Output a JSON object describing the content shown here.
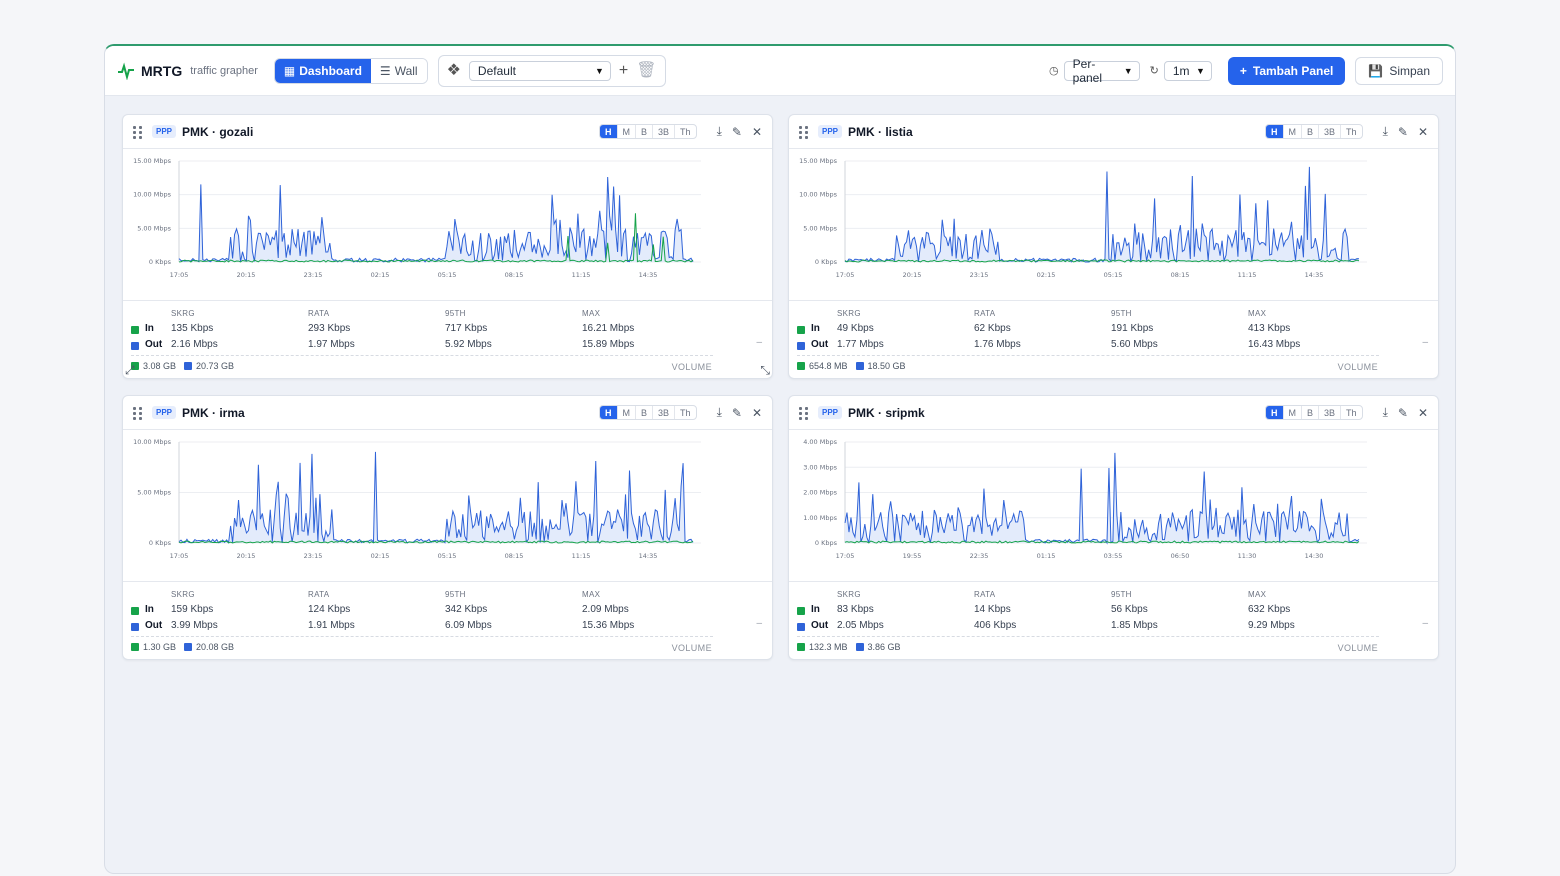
{
  "app": {
    "name": "MRTG",
    "subtitle": "traffic grapher"
  },
  "toolbar": {
    "dashboard_label": "Dashboard",
    "wall_label": "Wall",
    "layout_value": "Default",
    "scope_value": "Per-panel",
    "refresh_value": "1m",
    "add_panel_label": "Tambah Panel",
    "save_label": "Simpan"
  },
  "colors": {
    "accent": "#2563eb",
    "in": "#16a34a",
    "out": "#2f63d8"
  },
  "range_buttons": [
    "H",
    "M",
    "B",
    "3B",
    "Th"
  ],
  "stat_headers": [
    "SKRG",
    "RATA",
    "95TH",
    "MAX"
  ],
  "volume_label": "VOLUME",
  "panels": [
    {
      "badge": "PPP",
      "title": "PMK · gozali",
      "yticks": [
        "15.00 Mbps",
        "10.00 Mbps",
        "5.00 Mbps",
        "0 Kbps"
      ],
      "xticks": [
        "17:05",
        "20:15",
        "23:15",
        "02:15",
        "05:15",
        "08:15",
        "11:15",
        "14:35"
      ],
      "in_label": "In",
      "out_label": "Out",
      "in": [
        "135 Kbps",
        "293 Kbps",
        "717 Kbps",
        "16.21 Mbps"
      ],
      "out": [
        "2.16 Mbps",
        "1.97 Mbps",
        "5.92 Mbps",
        "15.89 Mbps"
      ],
      "vol_in": "3.08 GB",
      "vol_out": "20.73 GB",
      "chart_data": {
        "type": "area",
        "ylim": [
          0,
          15
        ],
        "unit": "Mbps"
      }
    },
    {
      "badge": "PPP",
      "title": "PMK · listia",
      "yticks": [
        "15.00 Mbps",
        "10.00 Mbps",
        "5.00 Mbps",
        "0 Kbps"
      ],
      "xticks": [
        "17:05",
        "20:15",
        "23:15",
        "02:15",
        "05:15",
        "08:15",
        "11:15",
        "14:35"
      ],
      "in_label": "In",
      "out_label": "Out",
      "in": [
        "49 Kbps",
        "62 Kbps",
        "191 Kbps",
        "413 Kbps"
      ],
      "out": [
        "1.77 Mbps",
        "1.76 Mbps",
        "5.60 Mbps",
        "16.43 Mbps"
      ],
      "vol_in": "654.8 MB",
      "vol_out": "18.50 GB",
      "chart_data": {
        "type": "area",
        "ylim": [
          0,
          15
        ],
        "unit": "Mbps"
      }
    },
    {
      "badge": "PPP",
      "title": "PMK · irma",
      "yticks": [
        "10.00 Mbps",
        "5.00 Mbps",
        "0 Kbps"
      ],
      "xticks": [
        "17:05",
        "20:15",
        "23:15",
        "02:15",
        "05:15",
        "08:15",
        "11:15",
        "14:35"
      ],
      "in_label": "In",
      "out_label": "Out",
      "in": [
        "159 Kbps",
        "124 Kbps",
        "342 Kbps",
        "2.09 Mbps"
      ],
      "out": [
        "3.99 Mbps",
        "1.91 Mbps",
        "6.09 Mbps",
        "15.36 Mbps"
      ],
      "vol_in": "1.30 GB",
      "vol_out": "20.08 GB",
      "chart_data": {
        "type": "area",
        "ylim": [
          0,
          10
        ],
        "unit": "Mbps"
      }
    },
    {
      "badge": "PPP",
      "title": "PMK · sripmk",
      "yticks": [
        "4.00 Mbps",
        "3.00 Mbps",
        "2.00 Mbps",
        "1.00 Mbps",
        "0 Kbps"
      ],
      "xticks": [
        "17:05",
        "19:55",
        "22:35",
        "01:15",
        "03:55",
        "06:50",
        "11:30",
        "14:30"
      ],
      "in_label": "In",
      "out_label": "Out",
      "in": [
        "83 Kbps",
        "14 Kbps",
        "56 Kbps",
        "632 Kbps"
      ],
      "out": [
        "2.05 Mbps",
        "406 Kbps",
        "1.85 Mbps",
        "9.29 Mbps"
      ],
      "vol_in": "132.3 MB",
      "vol_out": "3.86 GB",
      "chart_data": {
        "type": "area",
        "ylim": [
          0,
          4
        ],
        "unit": "Mbps"
      }
    }
  ]
}
